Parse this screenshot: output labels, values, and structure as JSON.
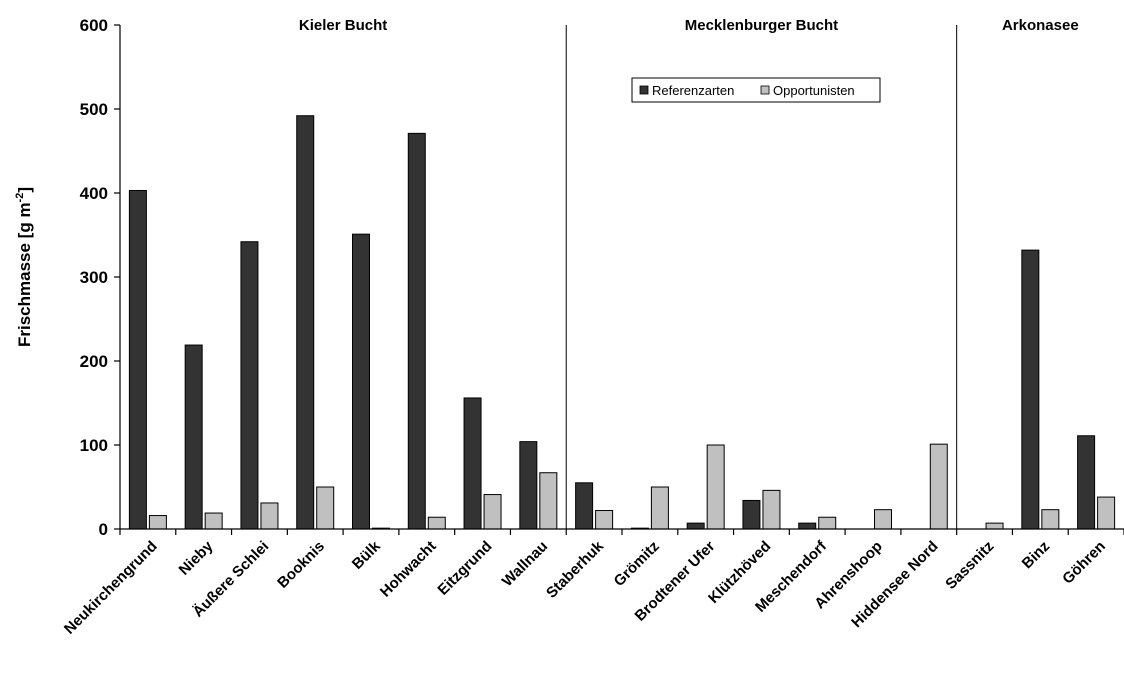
{
  "chart_data": {
    "type": "bar",
    "title": "",
    "xlabel": "",
    "ylabel": "Frischmasse [g m",
    "ylabel_sup": "-2",
    "ylabel_close": "]",
    "ylim": [
      0,
      600
    ],
    "yticks": [
      0,
      100,
      200,
      300,
      400,
      500,
      600
    ],
    "grid": false,
    "legend_position": "top-center",
    "categories": [
      "Neukirchengrund",
      "Nieby",
      "Äußere Schlei",
      "Booknis",
      "Bülk",
      "Hohwacht",
      "Eitzgrund",
      "Wallnau",
      "Staberhuk",
      "Grömitz",
      "Brodtener Ufer",
      "Klützhöved",
      "Meschendorf",
      "Ahrenshoop",
      "Hiddensee Nord",
      "Sassnitz",
      "Binz",
      "Göhren"
    ],
    "series": [
      {
        "name": "Referenzarten",
        "color": "#333333",
        "values": [
          403,
          219,
          342,
          492,
          351,
          471,
          156,
          104,
          55,
          1,
          7,
          34,
          7,
          0,
          0,
          0,
          332,
          111
        ]
      },
      {
        "name": "Opportunisten",
        "color": "#c0c0c0",
        "values": [
          16,
          19,
          31,
          50,
          1,
          14,
          41,
          67,
          22,
          50,
          100,
          46,
          14,
          23,
          101,
          7,
          23,
          38
        ]
      }
    ],
    "regions": [
      {
        "name": "Kieler Bucht",
        "start_index": 0,
        "end_index": 7
      },
      {
        "name": "Mecklenburger Bucht",
        "start_index": 8,
        "end_index": 14
      },
      {
        "name": "Arkonasee",
        "start_index": 15,
        "end_index": 17
      }
    ]
  }
}
